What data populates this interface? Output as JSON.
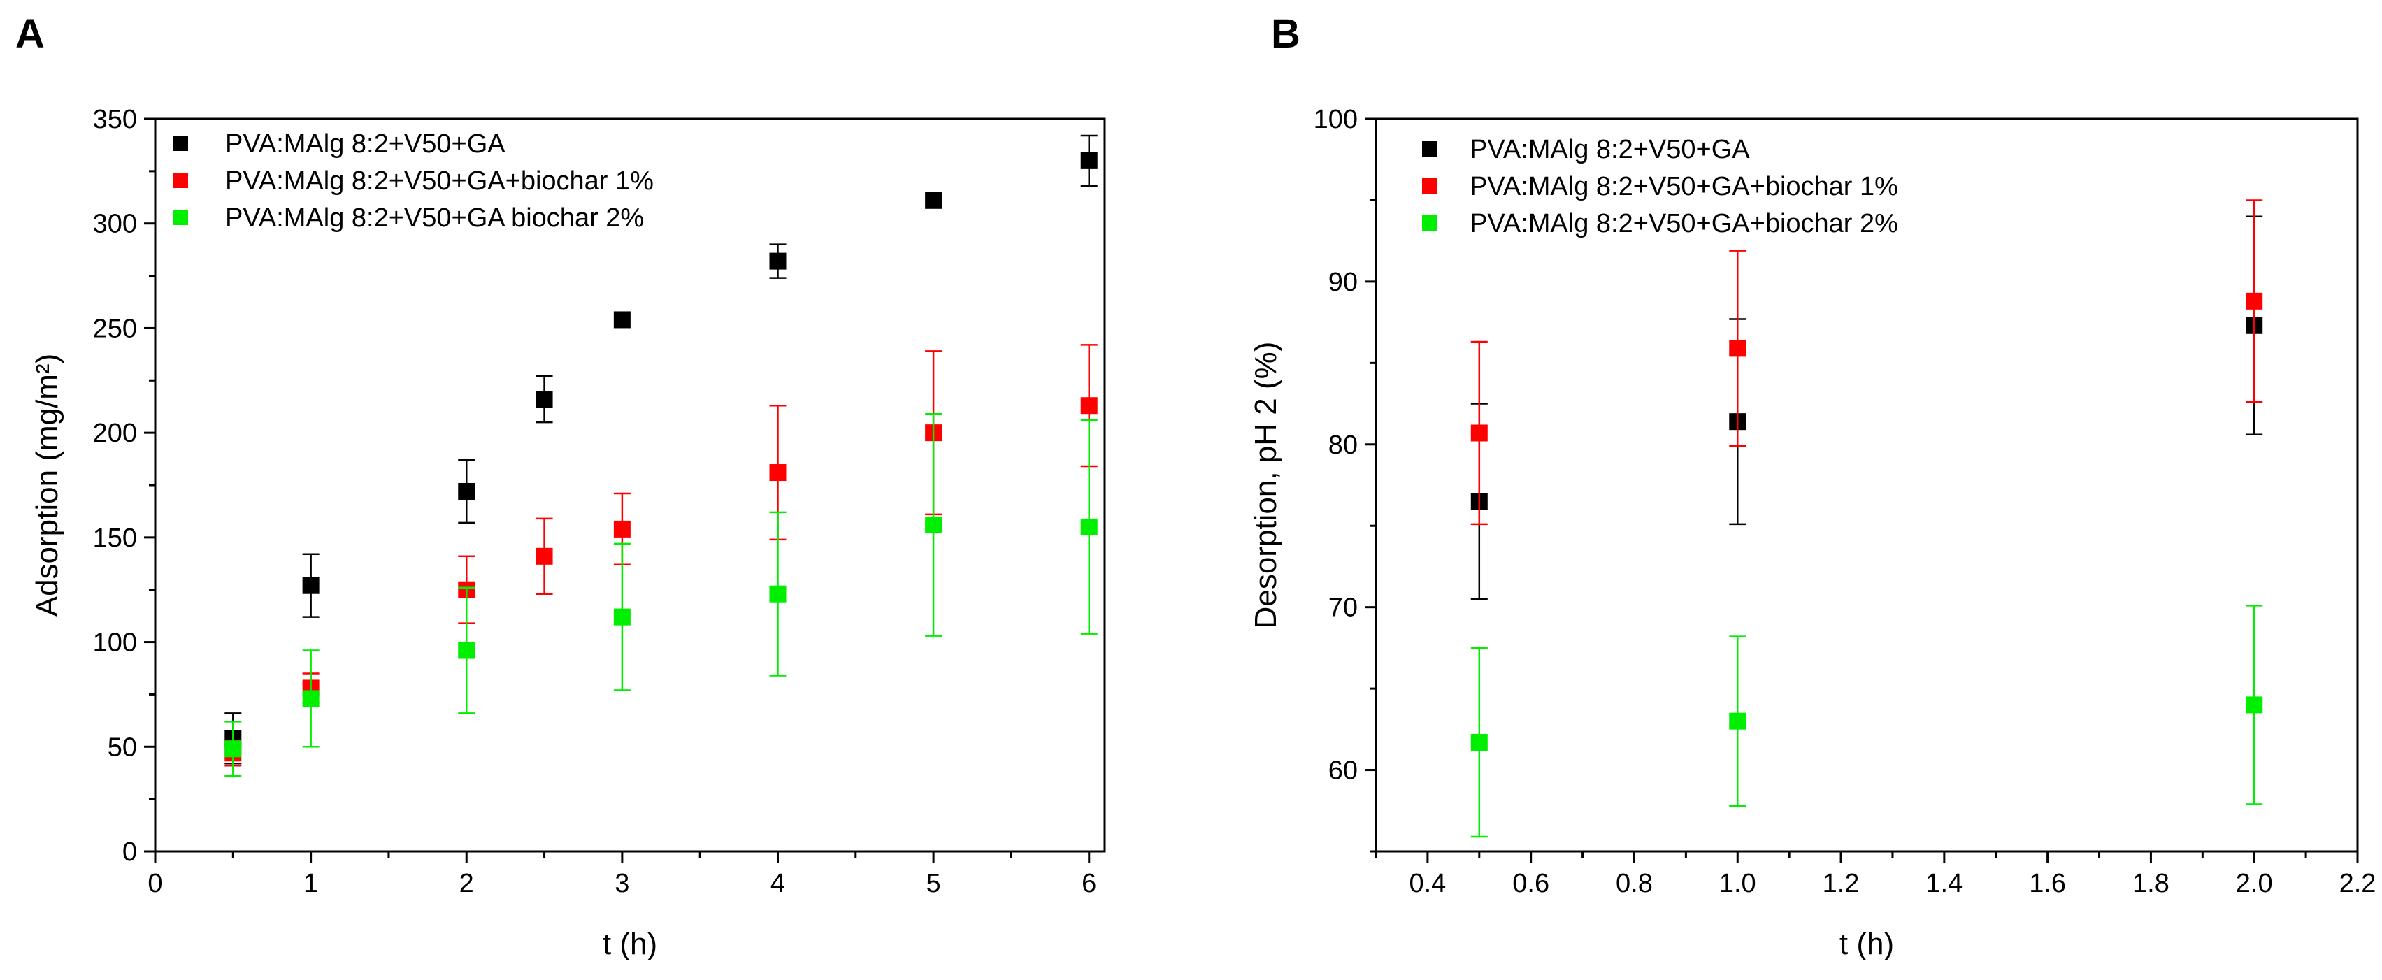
{
  "chart_data": [
    {
      "panel": "A",
      "type": "scatter",
      "title": "",
      "xlabel": "t (h)",
      "ylabel": "Adsorption (mg/m²)",
      "xlim": [
        0,
        6.1
      ],
      "ylim": [
        0,
        350
      ],
      "xticks": [
        0,
        1,
        2,
        3,
        4,
        5,
        6
      ],
      "yticks": [
        0,
        50,
        100,
        150,
        200,
        250,
        300,
        350
      ],
      "legend_position": "top-left",
      "series": [
        {
          "name": "PVA:MAlg 8:2+V50+GA",
          "color": "#000000",
          "x": [
            0.5,
            1,
            2,
            2.5,
            3,
            4,
            5,
            6
          ],
          "y": [
            54,
            127,
            172,
            216,
            254,
            282,
            311,
            330
          ],
          "err": [
            12,
            15,
            15,
            11,
            0,
            8,
            0,
            12
          ]
        },
        {
          "name": "PVA:MAlg 8:2+V50+GA+biochar 1%",
          "color": "#ff0000",
          "x": [
            0.5,
            1,
            2,
            2.5,
            3,
            4,
            5,
            6
          ],
          "y": [
            47,
            78,
            125,
            141,
            154,
            181,
            200,
            213
          ],
          "err": [
            6,
            7,
            16,
            18,
            17,
            32,
            39,
            29
          ]
        },
        {
          "name": "PVA:MAlg 8:2+V50+GA biochar 2%",
          "color": "#00ee00",
          "x": [
            0.5,
            1,
            2,
            3,
            4,
            5,
            6
          ],
          "y": [
            49,
            73,
            96,
            112,
            123,
            156,
            155
          ],
          "err": [
            13,
            23,
            30,
            35,
            39,
            53,
            51
          ]
        }
      ]
    },
    {
      "panel": "B",
      "type": "scatter",
      "title": "",
      "xlabel": "t (h)",
      "ylabel": "Desorption, pH 2 (%)",
      "xlim": [
        0.3,
        2.2
      ],
      "ylim": [
        55,
        100
      ],
      "xticks": [
        0.4,
        0.6,
        0.8,
        1.0,
        1.2,
        1.4,
        1.6,
        1.8,
        2.0,
        2.2
      ],
      "xtick_labels": [
        "0.4",
        "0.6",
        "0.8",
        "1.0",
        "1.2",
        "1.4",
        "1.6",
        "1.8",
        "2.0",
        "2.2"
      ],
      "yticks": [
        60,
        70,
        80,
        90,
        100
      ],
      "legend_position": "top-left",
      "series": [
        {
          "name": "PVA:MAlg 8:2+V50+GA",
          "color": "#000000",
          "x": [
            0.5,
            1.0,
            2.0
          ],
          "y": [
            76.5,
            81.4,
            87.3
          ],
          "err": [
            6,
            6.3,
            6.7
          ]
        },
        {
          "name": "PVA:MAlg 8:2+V50+GA+biochar 1%",
          "color": "#ff0000",
          "x": [
            0.5,
            1.0,
            2.0
          ],
          "y": [
            80.7,
            85.9,
            88.8
          ],
          "err": [
            5.6,
            6,
            6.2
          ]
        },
        {
          "name": "PVA:MAlg 8:2+V50+GA+biochar 2%",
          "color": "#00ee00",
          "x": [
            0.5,
            1.0,
            2.0
          ],
          "y": [
            61.7,
            63.0,
            64.0
          ],
          "err": [
            5.8,
            5.2,
            6.1
          ]
        }
      ]
    }
  ]
}
